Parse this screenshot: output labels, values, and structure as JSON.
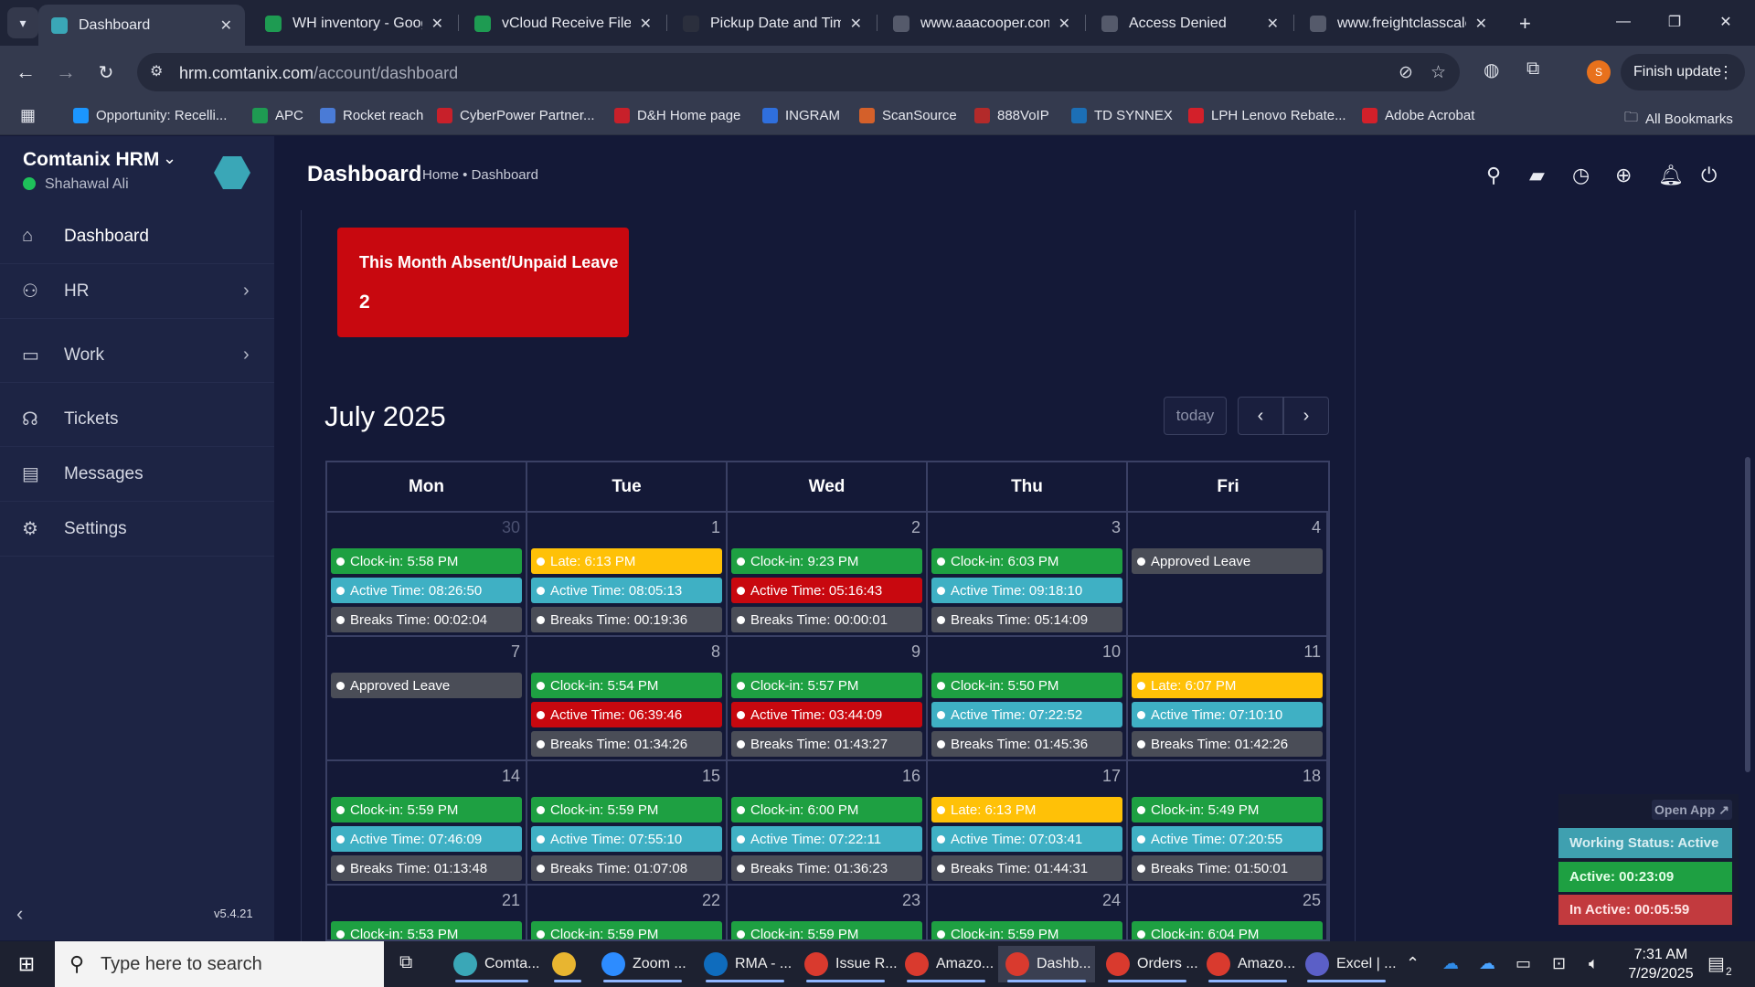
{
  "browser": {
    "tabs": [
      {
        "title": "Dashboard",
        "active": true,
        "favicon": "comtanix-icon",
        "color": "#3aa7b7"
      },
      {
        "title": "WH inventory - Goog",
        "favicon": "sheets-icon",
        "color": "#1e9b52"
      },
      {
        "title": "vCloud Receive File -",
        "favicon": "sheets-icon",
        "color": "#1e9b52"
      },
      {
        "title": "Pickup Date and Tim",
        "favicon": "openai-icon",
        "color": "#2b2f3d"
      },
      {
        "title": "www.aaacooper.com",
        "favicon": "page-icon",
        "color": "#555a6b"
      },
      {
        "title": "Access Denied",
        "favicon": "globe-icon",
        "color": "#555a6b"
      },
      {
        "title": "www.freightclasscalc",
        "favicon": "fcc-icon",
        "color": "#555a6b"
      }
    ],
    "new_tab_symbol": "+",
    "url_host": "hrm.comtanix.com",
    "url_path": "/account/dashboard",
    "profile_initial": "S",
    "finish_update_label": "Finish update",
    "bookmarks": [
      {
        "label": "Opportunity: Recelli...",
        "icon": "salesforce-icon",
        "color": "#1b96ff"
      },
      {
        "label": "APC",
        "icon": "apc-icon",
        "color": "#1e9b52"
      },
      {
        "label": "Rocket reach",
        "icon": "rocket-icon",
        "color": "#4a7bd6"
      },
      {
        "label": "CyberPower Partner...",
        "icon": "cp-icon",
        "color": "#c8202a"
      },
      {
        "label": "D&H Home page",
        "icon": "dh-icon",
        "color": "#c8202a"
      },
      {
        "label": "INGRAM",
        "icon": "ingram-icon",
        "color": "#2f6fdd"
      },
      {
        "label": "ScanSource",
        "icon": "scansource-icon",
        "color": "#d4602a"
      },
      {
        "label": "888VoIP",
        "icon": "888voip-icon",
        "color": "#b32a2a"
      },
      {
        "label": "TD SYNNEX",
        "icon": "tdsynnex-icon",
        "color": "#1c6fb6"
      },
      {
        "label": "LPH Lenovo Rebate...",
        "icon": "lenovo-icon",
        "color": "#d3202a"
      },
      {
        "label": "Adobe Acrobat",
        "icon": "acrobat-icon",
        "color": "#d3202a"
      }
    ],
    "all_bookmarks_label": "All Bookmarks"
  },
  "sidebar": {
    "brand": "Comtanix HRM",
    "user": "Shahawal Ali",
    "status_color": "#1ec15a",
    "items": [
      {
        "label": "Dashboard",
        "icon": "home-icon",
        "active": true
      },
      {
        "label": "HR",
        "icon": "users-icon",
        "has_children": true
      },
      {
        "label": "Work",
        "icon": "briefcase-icon",
        "has_children": true
      },
      {
        "label": "Tickets",
        "icon": "headset-icon"
      },
      {
        "label": "Messages",
        "icon": "message-icon"
      },
      {
        "label": "Settings",
        "icon": "gear-icon"
      }
    ],
    "version": "v5.4.21"
  },
  "header": {
    "title": "Dashboard",
    "breadcrumb": "Home • Dashboard",
    "icons": [
      "search-icon",
      "note-icon",
      "history-icon",
      "plus-circle-icon",
      "bell-icon",
      "power-icon"
    ]
  },
  "card": {
    "label": "This Month Absent/Unpaid Leave",
    "value": "2",
    "color": "#c8080f"
  },
  "calendar": {
    "title": "July 2025",
    "today_label": "today",
    "days": [
      "Mon",
      "Tue",
      "Wed",
      "Thu",
      "Fri"
    ],
    "event_colors": {
      "green": "#1ea042",
      "yellow": "#ffc107",
      "teal": "#3fb0c4",
      "red": "#c8080f",
      "gray": "#4a4d57"
    },
    "weeks": [
      [
        {
          "day": "30",
          "other": true,
          "events": [
            {
              "text": "Clock-in: 5:58 PM",
              "c": "green"
            },
            {
              "text": "Active Time: 08:26:50",
              "c": "teal"
            },
            {
              "text": "Breaks Time: 00:02:04",
              "c": "gray"
            }
          ]
        },
        {
          "day": "1",
          "events": [
            {
              "text": "Late: 6:13 PM",
              "c": "yellow"
            },
            {
              "text": "Active Time: 08:05:13",
              "c": "teal"
            },
            {
              "text": "Breaks Time: 00:19:36",
              "c": "gray"
            }
          ]
        },
        {
          "day": "2",
          "events": [
            {
              "text": "Clock-in: 9:23 PM",
              "c": "green"
            },
            {
              "text": "Active Time: 05:16:43",
              "c": "red"
            },
            {
              "text": "Breaks Time: 00:00:01",
              "c": "gray"
            }
          ]
        },
        {
          "day": "3",
          "events": [
            {
              "text": "Clock-in: 6:03 PM",
              "c": "green"
            },
            {
              "text": "Active Time: 09:18:10",
              "c": "teal"
            },
            {
              "text": "Breaks Time: 05:14:09",
              "c": "gray"
            }
          ]
        },
        {
          "day": "4",
          "events": [
            {
              "text": "Approved Leave",
              "c": "gray"
            }
          ]
        }
      ],
      [
        {
          "day": "7",
          "events": [
            {
              "text": "Approved Leave",
              "c": "gray"
            }
          ]
        },
        {
          "day": "8",
          "events": [
            {
              "text": "Clock-in: 5:54 PM",
              "c": "green"
            },
            {
              "text": "Active Time: 06:39:46",
              "c": "red"
            },
            {
              "text": "Breaks Time: 01:34:26",
              "c": "gray"
            }
          ]
        },
        {
          "day": "9",
          "events": [
            {
              "text": "Clock-in: 5:57 PM",
              "c": "green"
            },
            {
              "text": "Active Time: 03:44:09",
              "c": "red"
            },
            {
              "text": "Breaks Time: 01:43:27",
              "c": "gray"
            }
          ]
        },
        {
          "day": "10",
          "events": [
            {
              "text": "Clock-in: 5:50 PM",
              "c": "green"
            },
            {
              "text": "Active Time: 07:22:52",
              "c": "teal"
            },
            {
              "text": "Breaks Time: 01:45:36",
              "c": "gray"
            }
          ]
        },
        {
          "day": "11",
          "events": [
            {
              "text": "Late: 6:07 PM",
              "c": "yellow"
            },
            {
              "text": "Active Time: 07:10:10",
              "c": "teal"
            },
            {
              "text": "Breaks Time: 01:42:26",
              "c": "gray"
            }
          ]
        }
      ],
      [
        {
          "day": "14",
          "events": [
            {
              "text": "Clock-in: 5:59 PM",
              "c": "green"
            },
            {
              "text": "Active Time: 07:46:09",
              "c": "teal"
            },
            {
              "text": "Breaks Time: 01:13:48",
              "c": "gray"
            }
          ]
        },
        {
          "day": "15",
          "events": [
            {
              "text": "Clock-in: 5:59 PM",
              "c": "green"
            },
            {
              "text": "Active Time: 07:55:10",
              "c": "teal"
            },
            {
              "text": "Breaks Time: 01:07:08",
              "c": "gray"
            }
          ]
        },
        {
          "day": "16",
          "events": [
            {
              "text": "Clock-in: 6:00 PM",
              "c": "green"
            },
            {
              "text": "Active Time: 07:22:11",
              "c": "teal"
            },
            {
              "text": "Breaks Time: 01:36:23",
              "c": "gray"
            }
          ]
        },
        {
          "day": "17",
          "events": [
            {
              "text": "Late: 6:13 PM",
              "c": "yellow"
            },
            {
              "text": "Active Time: 07:03:41",
              "c": "teal"
            },
            {
              "text": "Breaks Time: 01:44:31",
              "c": "gray"
            }
          ]
        },
        {
          "day": "18",
          "events": [
            {
              "text": "Clock-in: 5:49 PM",
              "c": "green"
            },
            {
              "text": "Active Time: 07:20:55",
              "c": "teal"
            },
            {
              "text": "Breaks Time: 01:50:01",
              "c": "gray"
            }
          ]
        }
      ],
      [
        {
          "day": "21",
          "events": [
            {
              "text": "Clock-in: 5:53 PM",
              "c": "green"
            }
          ]
        },
        {
          "day": "22",
          "events": [
            {
              "text": "Clock-in: 5:59 PM",
              "c": "green"
            }
          ]
        },
        {
          "day": "23",
          "events": [
            {
              "text": "Clock-in: 5:59 PM",
              "c": "green"
            }
          ]
        },
        {
          "day": "24",
          "events": [
            {
              "text": "Clock-in: 5:59 PM",
              "c": "green"
            }
          ]
        },
        {
          "day": "25",
          "events": [
            {
              "text": "Clock-in: 6:04 PM",
              "c": "green"
            }
          ]
        }
      ]
    ]
  },
  "widget": {
    "open_app": "Open App ↗",
    "working_status": "Working Status: Active",
    "active": "Active: 00:23:09",
    "inactive": "In Active: 00:05:59",
    "colors": {
      "status": "#3fa0b0",
      "active": "#1ea042",
      "inactive": "#c23a3e"
    }
  },
  "taskbar": {
    "search_placeholder": "Type here to search",
    "apps": [
      {
        "label": "Comta...",
        "icon": "comtanix-icon",
        "color": "#3aa7b7"
      },
      {
        "label": "",
        "icon": "file-explorer-icon",
        "color": "#e8b530"
      },
      {
        "label": "Zoom ...",
        "icon": "zoom-icon",
        "color": "#2d8cff"
      },
      {
        "label": "RMA - ...",
        "icon": "outlook-icon",
        "color": "#0f6cbd"
      },
      {
        "label": "Issue R...",
        "icon": "chrome-icon",
        "color": "#d93a2e"
      },
      {
        "label": "Amazo...",
        "icon": "chrome-icon",
        "color": "#d93a2e"
      },
      {
        "label": "Dashb...",
        "icon": "chrome-icon",
        "color": "#d93a2e",
        "active": true
      },
      {
        "label": "Orders ...",
        "icon": "chrome-icon",
        "color": "#d93a2e"
      },
      {
        "label": "Amazo...",
        "icon": "chrome-icon",
        "color": "#d93a2e"
      },
      {
        "label": "Excel | ...",
        "icon": "teams-icon",
        "color": "#5b5fc7"
      }
    ],
    "time": "7:31 AM",
    "date": "7/29/2025",
    "notification_count": "2"
  }
}
